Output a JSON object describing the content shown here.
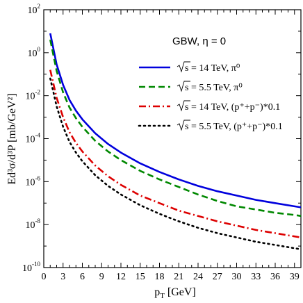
{
  "chart_data": {
    "type": "line",
    "annotation": "GBW,   η = 0",
    "xlabel": {
      "main": "p",
      "sub": "T",
      "rest": " [GeV]"
    },
    "ylabel": "Ed³σ/d³P [mb/GeV²]",
    "xlim": [
      0,
      40
    ],
    "ylim_log10": [
      -10,
      2
    ],
    "log_y": true,
    "grid": false,
    "legend_position": "top-right",
    "x_ticks": [
      0,
      3,
      6,
      9,
      12,
      15,
      18,
      21,
      24,
      27,
      30,
      33,
      36,
      39
    ],
    "x_tick_labels": [
      "0",
      "3",
      "6",
      "9",
      "12",
      "15",
      "18",
      "21",
      "24",
      "27",
      "30",
      "33",
      "36",
      "39"
    ],
    "y_tick_exponents": [
      -10,
      -8,
      -6,
      -4,
      -2,
      0,
      2
    ],
    "y_tick_base": "10",
    "y_tick_exp_labels": [
      "-10",
      "-8",
      "-6",
      "-4",
      "-2",
      "0",
      "2"
    ],
    "x": [
      1,
      2,
      3,
      4,
      5,
      6,
      8,
      10,
      12,
      15,
      18,
      21,
      24,
      27,
      30,
      33,
      36,
      39,
      40
    ],
    "series": [
      {
        "legend": {
          "root": "s",
          "rest": " = 14 TeV,  π⁰"
        },
        "color": "#0000dd",
        "dash": "solid",
        "log10_y": [
          0.9,
          -0.55,
          -1.5,
          -2.2,
          -2.7,
          -3.1,
          -3.75,
          -4.25,
          -4.65,
          -5.15,
          -5.55,
          -5.9,
          -6.2,
          -6.45,
          -6.65,
          -6.85,
          -7.0,
          -7.15,
          -7.2
        ]
      },
      {
        "legend": {
          "root": "s",
          "rest": " = 5.5 TeV,  π⁰"
        },
        "color": "#008800",
        "dash": "dashed",
        "log10_y": [
          0.6,
          -0.85,
          -1.85,
          -2.55,
          -3.05,
          -3.45,
          -4.1,
          -4.6,
          -5.0,
          -5.5,
          -5.9,
          -6.25,
          -6.6,
          -6.9,
          -7.15,
          -7.3,
          -7.45,
          -7.55,
          -7.6
        ]
      },
      {
        "legend": {
          "root": "s",
          "rest": " = 14 TeV,  (p⁺+p⁻)*0.1"
        },
        "color": "#dd0000",
        "dash": "dashdot",
        "log10_y": [
          -0.8,
          -2.1,
          -3.0,
          -3.7,
          -4.2,
          -4.6,
          -5.25,
          -5.75,
          -6.15,
          -6.65,
          -7.0,
          -7.35,
          -7.6,
          -7.85,
          -8.05,
          -8.25,
          -8.4,
          -8.55,
          -8.6
        ]
      },
      {
        "legend": {
          "root": "s",
          "rest": " = 5.5 TeV,  (p⁺+p⁻)*0.1"
        },
        "color": "#000000",
        "dash": "dotted",
        "log10_y": [
          -1.2,
          -2.5,
          -3.45,
          -4.15,
          -4.65,
          -5.05,
          -5.7,
          -6.2,
          -6.6,
          -7.1,
          -7.5,
          -7.85,
          -8.15,
          -8.4,
          -8.6,
          -8.8,
          -8.95,
          -9.1,
          -9.15
        ]
      }
    ]
  }
}
